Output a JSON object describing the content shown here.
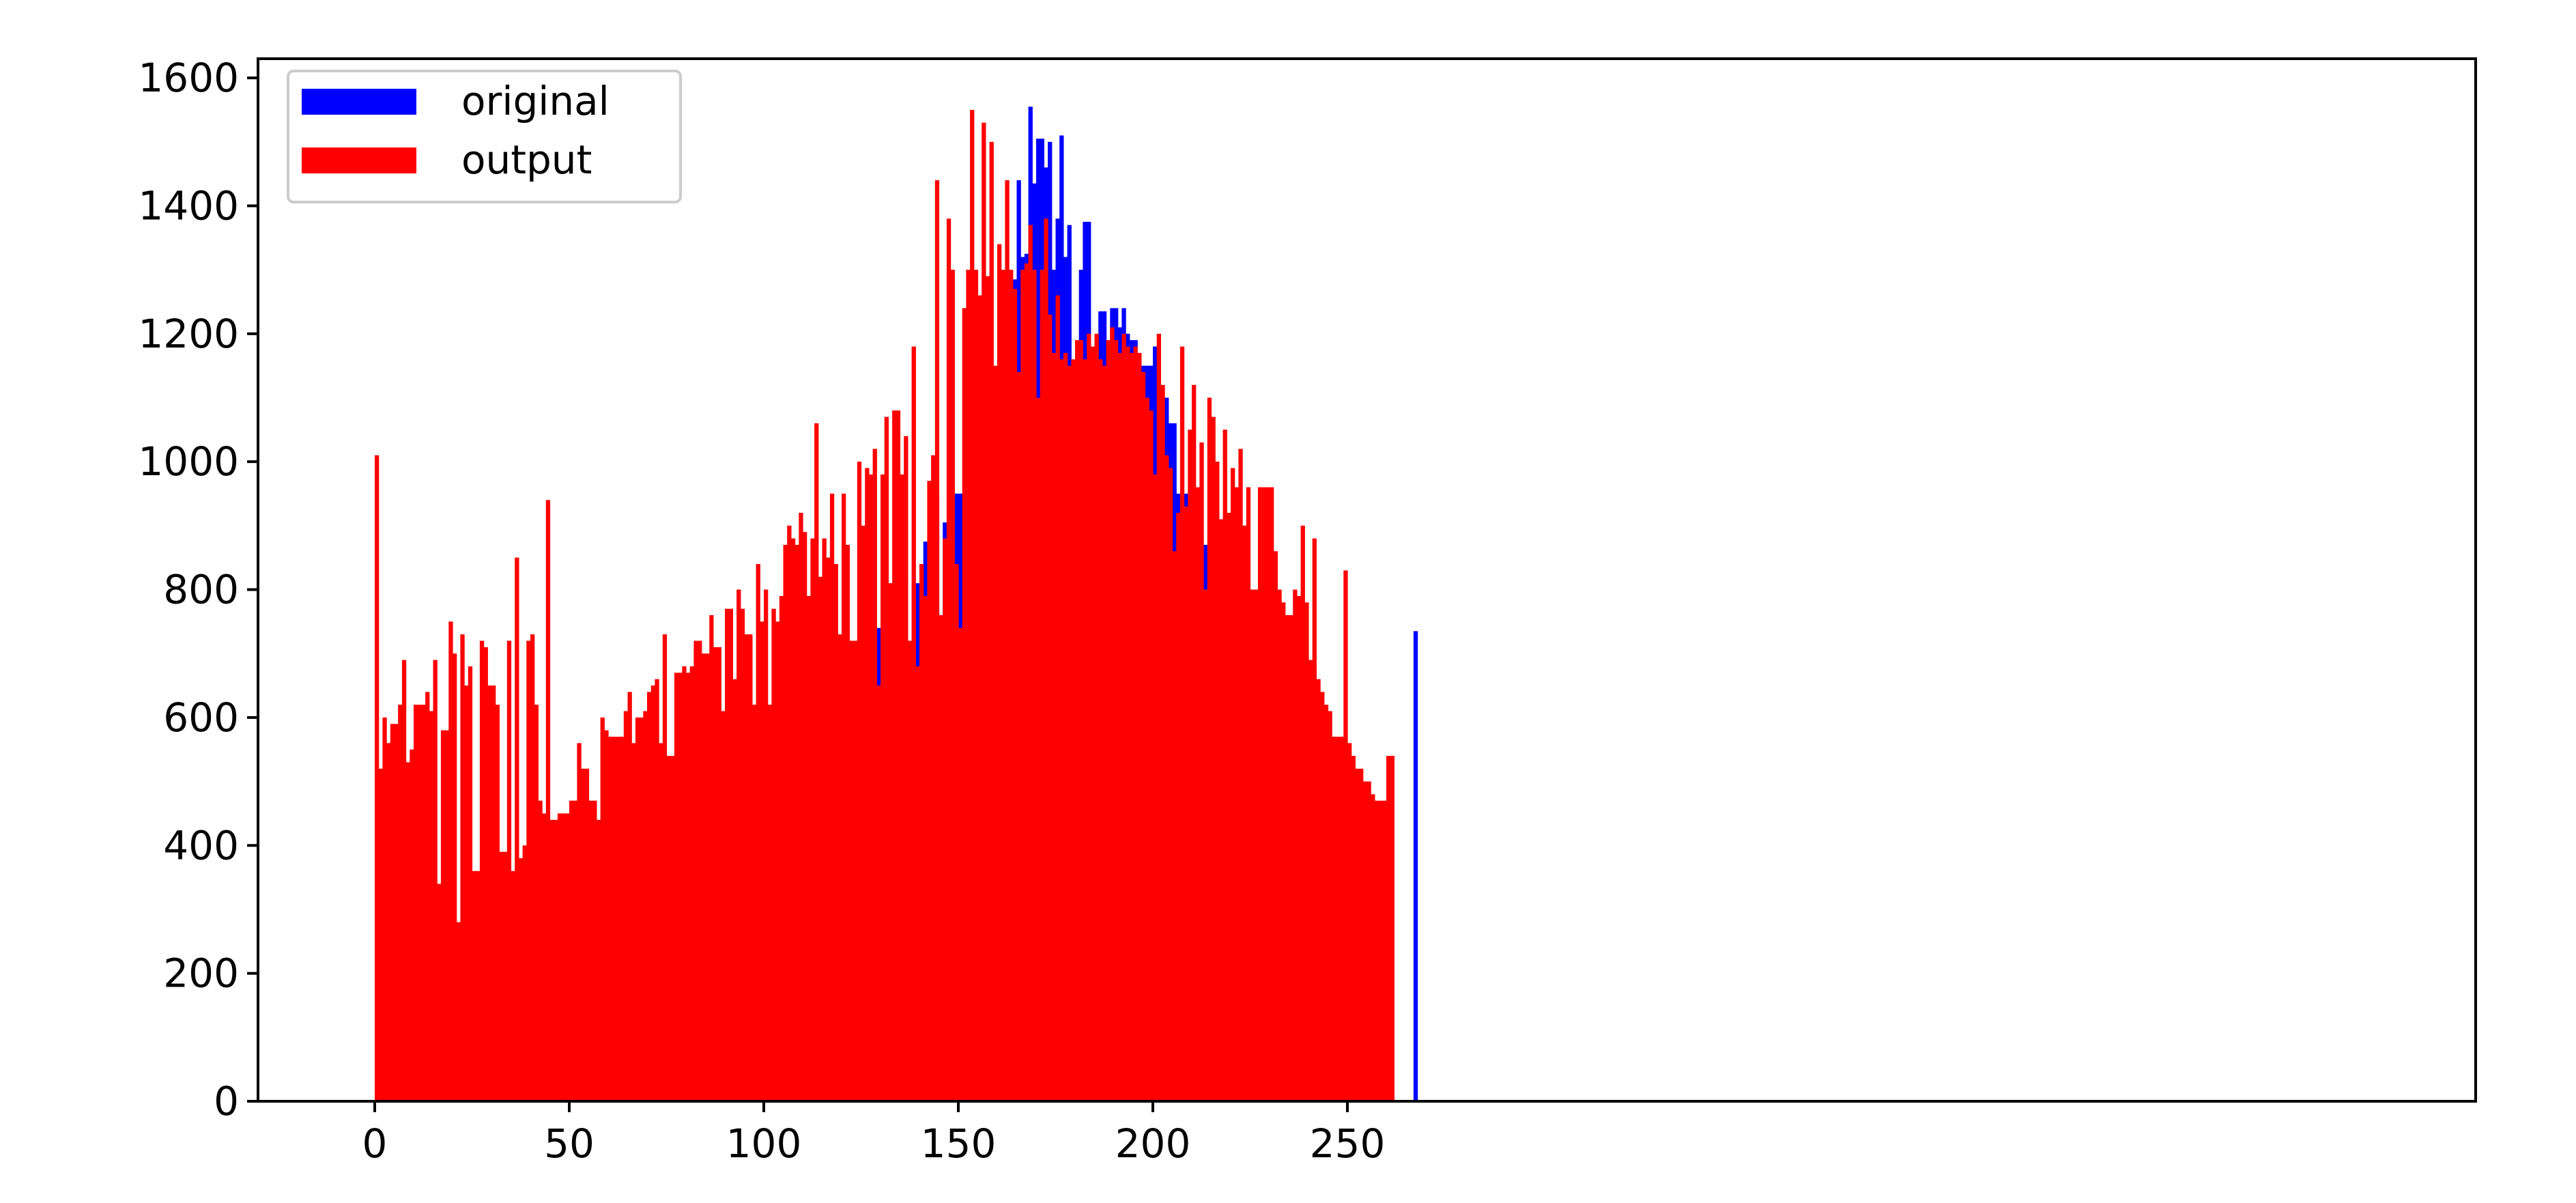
{
  "chart_data": {
    "type": "bar",
    "title": "",
    "xlabel": "",
    "ylabel": "",
    "xlim": [
      -30,
      540
    ],
    "ylim": [
      0,
      1630
    ],
    "xticks": [
      0,
      50,
      100,
      150,
      200,
      250
    ],
    "yticks": [
      0,
      200,
      400,
      600,
      800,
      1000,
      1200,
      1400,
      1600
    ],
    "xtick_labels": [
      "0",
      "50",
      "100",
      "150",
      "200",
      "250"
    ],
    "ytick_labels": [
      "0",
      "200",
      "400",
      "600",
      "800",
      "1000",
      "1200",
      "1400",
      "1600"
    ],
    "grid": false,
    "legend_position": "top-left",
    "series": [
      {
        "name": "original",
        "color": "#0000ff",
        "x_start": 0,
        "bar_width": 1,
        "values": [
          0,
          0,
          0,
          0,
          0,
          0,
          0,
          0,
          0,
          0,
          0,
          0,
          0,
          0,
          0,
          0,
          0,
          0,
          0,
          0,
          0,
          0,
          0,
          0,
          0,
          0,
          0,
          0,
          0,
          0,
          0,
          0,
          0,
          0,
          0,
          0,
          0,
          0,
          0,
          0,
          0,
          0,
          0,
          0,
          0,
          0,
          0,
          0,
          0,
          0,
          0,
          0,
          0,
          0,
          0,
          0,
          0,
          0,
          0,
          0,
          0,
          0,
          300,
          300,
          0,
          0,
          0,
          0,
          0,
          395,
          395,
          0,
          0,
          0,
          0,
          440,
          440,
          0,
          0,
          375,
          375,
          375,
          0,
          0,
          430,
          430,
          0,
          520,
          520,
          520,
          0,
          530,
          530,
          0,
          460,
          460,
          0,
          0,
          0,
          0,
          595,
          595,
          0,
          570,
          570,
          0,
          610,
          610,
          0,
          625,
          625,
          625,
          625,
          625,
          0,
          735,
          735,
          685,
          685,
          0,
          700,
          700,
          720,
          720,
          0,
          760,
          760,
          760,
          740,
          740,
          0,
          735,
          735,
          0,
          820,
          820,
          790,
          0,
          810,
          810,
          0,
          875,
          875,
          945,
          945,
          0,
          905,
          905,
          925,
          950,
          950,
          880,
          880,
          905,
          905,
          1060,
          1060,
          950,
          950,
          1080,
          1080,
          1070,
          1175,
          1175,
          1285,
          1440,
          1320,
          1325,
          1555,
          1435,
          1505,
          1505,
          1460,
          1500,
          1300,
          1380,
          1510,
          1320,
          1370,
          1140,
          1140,
          1300,
          1375,
          1375,
          1140,
          1180,
          1235,
          1235,
          1160,
          1240,
          1240,
          1210,
          1240,
          1200,
          1190,
          1190,
          1170,
          1150,
          1150,
          1150,
          1180,
          1100,
          1100,
          1100,
          1060,
          1060,
          950,
          950,
          950,
          950,
          950,
          950,
          0,
          870,
          870,
          610,
          0,
          0,
          0,
          0,
          0,
          0,
          440,
          440,
          400,
          400,
          0,
          0,
          270,
          270,
          260,
          260,
          245,
          245,
          0,
          0,
          215,
          215,
          0,
          0,
          200,
          200,
          0,
          0,
          150,
          150,
          0,
          0,
          0,
          0,
          0,
          0,
          0,
          0,
          0,
          0,
          0,
          0,
          0,
          0,
          0,
          0,
          0,
          0,
          0,
          0,
          0,
          735
        ]
      },
      {
        "name": "output",
        "color": "#ff0000",
        "x_start": 0,
        "bar_width": 1,
        "values": [
          1010,
          520,
          600,
          560,
          590,
          590,
          620,
          690,
          530,
          550,
          620,
          620,
          620,
          640,
          610,
          690,
          340,
          580,
          580,
          750,
          700,
          280,
          730,
          650,
          680,
          360,
          360,
          720,
          710,
          650,
          650,
          620,
          390,
          390,
          720,
          360,
          850,
          380,
          400,
          720,
          730,
          620,
          470,
          450,
          940,
          440,
          440,
          450,
          450,
          450,
          470,
          470,
          560,
          520,
          520,
          470,
          470,
          440,
          600,
          580,
          570,
          570,
          570,
          570,
          610,
          640,
          560,
          600,
          600,
          610,
          640,
          650,
          660,
          560,
          730,
          540,
          540,
          670,
          670,
          680,
          670,
          680,
          720,
          720,
          700,
          700,
          760,
          710,
          710,
          610,
          770,
          770,
          660,
          800,
          770,
          730,
          730,
          620,
          840,
          750,
          800,
          620,
          770,
          750,
          790,
          870,
          900,
          880,
          870,
          920,
          890,
          790,
          880,
          1060,
          820,
          880,
          850,
          950,
          840,
          730,
          950,
          870,
          720,
          720,
          1000,
          900,
          990,
          980,
          1020,
          650,
          980,
          1070,
          810,
          1080,
          1080,
          980,
          1040,
          720,
          1180,
          680,
          840,
          790,
          970,
          1010,
          1440,
          760,
          880,
          1380,
          1300,
          840,
          740,
          1240,
          1300,
          1550,
          1300,
          1260,
          1530,
          1290,
          1500,
          1150,
          1340,
          1300,
          1440,
          1300,
          1270,
          1140,
          1300,
          1310,
          1370,
          1300,
          1100,
          1300,
          1380,
          1230,
          1170,
          1260,
          1160,
          1170,
          1150,
          1160,
          1190,
          1190,
          1160,
          1200,
          1180,
          1200,
          1160,
          1150,
          1190,
          1210,
          1190,
          1170,
          1200,
          1180,
          1170,
          1180,
          1170,
          1140,
          1100,
          1080,
          980,
          1200,
          1120,
          1010,
          990,
          860,
          920,
          1180,
          930,
          1050,
          1120,
          960,
          1030,
          800,
          1100,
          1070,
          1000,
          910,
          1050,
          920,
          990,
          960,
          1020,
          900,
          960,
          800,
          800,
          960,
          960,
          960,
          960,
          860,
          800,
          780,
          760,
          760,
          800,
          790,
          900,
          780,
          690,
          880,
          660,
          640,
          620,
          610,
          570,
          570,
          570,
          830,
          560,
          540,
          520,
          520,
          500,
          500,
          480,
          470,
          470,
          470,
          540,
          540
        ]
      }
    ]
  }
}
